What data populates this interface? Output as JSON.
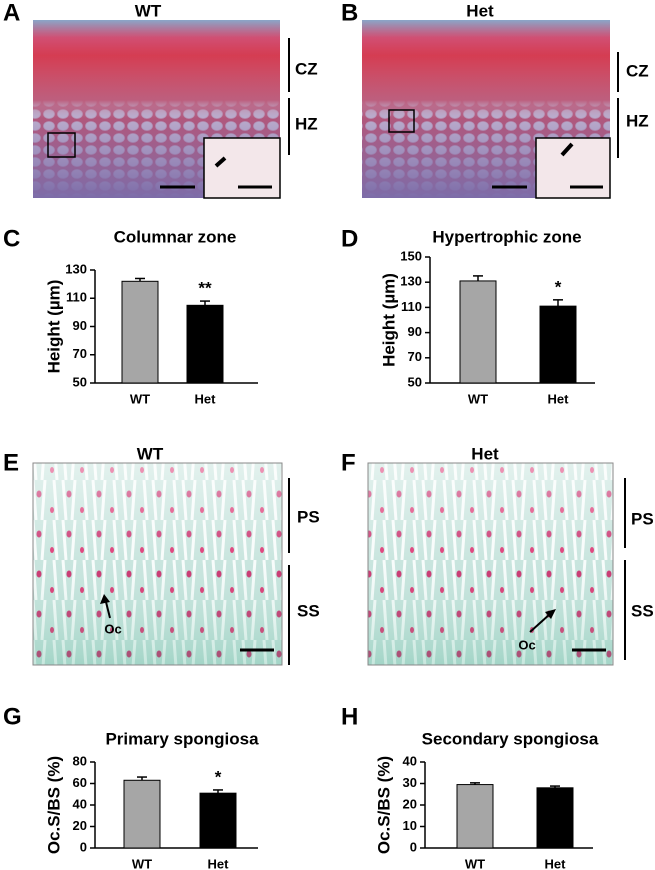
{
  "panels": [
    {
      "letter": "A",
      "title": "WT",
      "zones": [
        "CZ",
        "HZ"
      ]
    },
    {
      "letter": "B",
      "title": "Het",
      "zones": [
        "CZ",
        "HZ"
      ]
    },
    {
      "letter": "E",
      "title": "WT",
      "zones": [
        "PS",
        "SS"
      ],
      "arrow_label": "Oc"
    },
    {
      "letter": "F",
      "title": "Het",
      "zones": [
        "PS",
        "SS"
      ],
      "arrow_label": "Oc"
    }
  ],
  "chart_data": [
    {
      "type": "bar",
      "letter": "C",
      "title": "Columnar zone",
      "y_label": "Height (µm)",
      "categories": [
        "WT",
        "Het"
      ],
      "values": [
        122,
        105
      ],
      "errors": [
        2,
        3
      ],
      "colors": [
        "#a6a6a6",
        "#000000"
      ],
      "ylim": [
        50,
        130
      ],
      "yticks": [
        50,
        70,
        90,
        110,
        130
      ],
      "annotation": "**"
    },
    {
      "type": "bar",
      "letter": "D",
      "title": "Hypertrophic zone",
      "y_label": "Height (µm)",
      "categories": [
        "WT",
        "Het"
      ],
      "values": [
        131,
        111
      ],
      "errors": [
        4,
        5
      ],
      "colors": [
        "#a6a6a6",
        "#000000"
      ],
      "ylim": [
        50,
        150
      ],
      "yticks": [
        50,
        70,
        90,
        110,
        130,
        150
      ],
      "annotation": "*"
    },
    {
      "type": "bar",
      "letter": "G",
      "title": "Primary spongiosa",
      "y_label": "Oc.S/BS (%)",
      "categories": [
        "WT",
        "Het"
      ],
      "values": [
        63,
        51
      ],
      "errors": [
        3,
        3
      ],
      "colors": [
        "#a6a6a6",
        "#000000"
      ],
      "ylim": [
        0,
        80
      ],
      "yticks": [
        0,
        20,
        40,
        60,
        80
      ],
      "annotation": "*"
    },
    {
      "type": "bar",
      "letter": "H",
      "title": "Secondary spongiosa",
      "y_label": "Oc.S/BS (%)",
      "categories": [
        "WT",
        "Het"
      ],
      "values": [
        29.5,
        28
      ],
      "errors": [
        0.8,
        0.8
      ],
      "colors": [
        "#a6a6a6",
        "#000000"
      ],
      "ylim": [
        0,
        40
      ],
      "yticks": [
        0,
        10,
        20,
        30,
        40
      ]
    }
  ]
}
